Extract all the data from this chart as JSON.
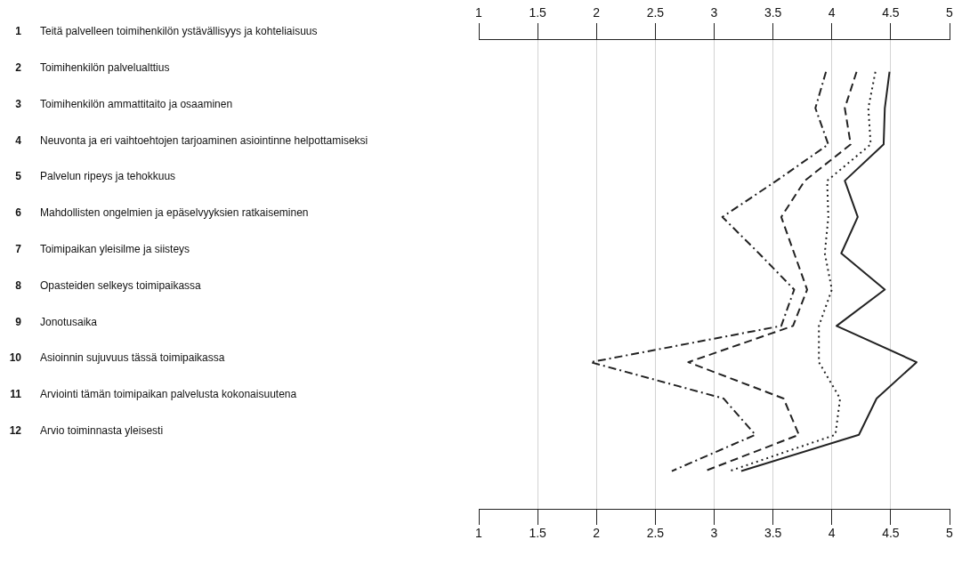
{
  "chart_data": {
    "type": "line",
    "orientation": "horizontal",
    "categories": [
      "1 Teitä palvelleen toimihenkilön ystävällisyys ja kohteliaisuus",
      "2 Toimihenkilön palvelualttius",
      "3 Toimihenkilön ammattitaito ja osaaminen",
      "4 Neuvonta ja eri vaihtoehtojen tarjoaminen asiointinne helpottamiseksi",
      "5 Palvelun ripeys ja tehokkuus",
      "6 Mahdollisten ongelmien ja epäselvyyksien ratkaiseminen",
      "7 Toimipaikan yleisilme ja siisteys",
      "8 Opasteiden selkeys toimipaikassa",
      "9 Jonotusaika",
      "10 Asioinnin sujuvuus tässä toimipaikassa",
      "11 Arviointi tämän toimipaikan palvelusta kokonaisuutena",
      "12 Arvio toiminnasta yleisesti",
      null
    ],
    "series": [
      {
        "color": "#222222",
        "line_style": "solid",
        "values": [
          null,
          4.49,
          4.45,
          4.44,
          4.11,
          4.22,
          4.08,
          4.45,
          4.04,
          4.72,
          4.38,
          4.23,
          3.23
        ]
      },
      {
        "color": "#222222",
        "line_style": "dotted",
        "values": [
          null,
          4.37,
          4.31,
          4.33,
          3.96,
          3.97,
          3.94,
          4.0,
          3.89,
          3.89,
          4.07,
          4.03,
          3.13
        ]
      },
      {
        "color": "#222222",
        "line_style": "dashed",
        "values": [
          null,
          4.21,
          4.11,
          4.16,
          3.77,
          3.57,
          3.68,
          3.79,
          3.67,
          2.78,
          3.59,
          3.72,
          2.92
        ]
      },
      {
        "color": "#222222",
        "line_style": "dashdot",
        "values": [
          null,
          3.95,
          3.86,
          3.97,
          3.53,
          3.07,
          3.38,
          3.68,
          3.57,
          1.95,
          3.08,
          3.35,
          2.64
        ]
      }
    ],
    "xlim": [
      1,
      5
    ],
    "xticks": [
      1,
      1.5,
      2,
      2.5,
      3,
      3.5,
      4,
      4.5,
      5
    ],
    "x2lim": [
      1,
      5
    ],
    "x2ticks": [
      1,
      1.5,
      2,
      2.5,
      3,
      3.5,
      4,
      4.5,
      5
    ],
    "grid": "x",
    "legend": false,
    "marker": "none"
  }
}
